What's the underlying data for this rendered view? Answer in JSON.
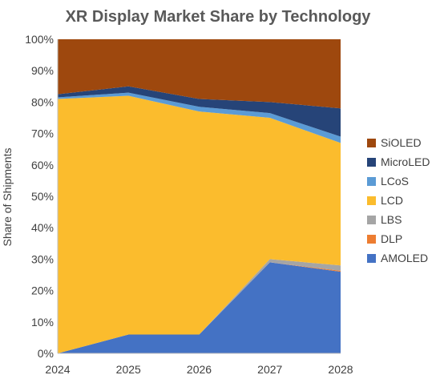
{
  "chart_data": {
    "type": "area",
    "stacked": true,
    "title": "XR Display Market Share by Technology",
    "xlabel": "",
    "ylabel": "Share of Shipments",
    "x": [
      "2024",
      "2025",
      "2026",
      "2027",
      "2028"
    ],
    "ylim": [
      0,
      100
    ],
    "yticks": [
      "0%",
      "10%",
      "20%",
      "30%",
      "40%",
      "50%",
      "60%",
      "70%",
      "80%",
      "90%",
      "100%"
    ],
    "grid": false,
    "legend_position": "right",
    "series": [
      {
        "name": "AMOLED",
        "color": "#4472C4",
        "values": [
          0,
          6,
          6,
          29,
          26
        ]
      },
      {
        "name": "DLP",
        "color": "#ED7D31",
        "values": [
          0,
          0,
          0,
          0,
          0.3
        ]
      },
      {
        "name": "LBS",
        "color": "#A5A5A5",
        "values": [
          0,
          0,
          0,
          1,
          1.7
        ]
      },
      {
        "name": "LCD",
        "color": "#FBBC2D",
        "values": [
          81,
          76,
          71,
          45,
          39
        ]
      },
      {
        "name": "LCoS",
        "color": "#5B9BD5",
        "values": [
          0.5,
          1,
          1.5,
          1.5,
          2
        ]
      },
      {
        "name": "MicroLED",
        "color": "#264478",
        "values": [
          1,
          2,
          2.5,
          3.5,
          9
        ]
      },
      {
        "name": "SiOLED",
        "color": "#9E480E",
        "values": [
          17.5,
          15,
          19,
          20,
          22
        ]
      }
    ]
  }
}
